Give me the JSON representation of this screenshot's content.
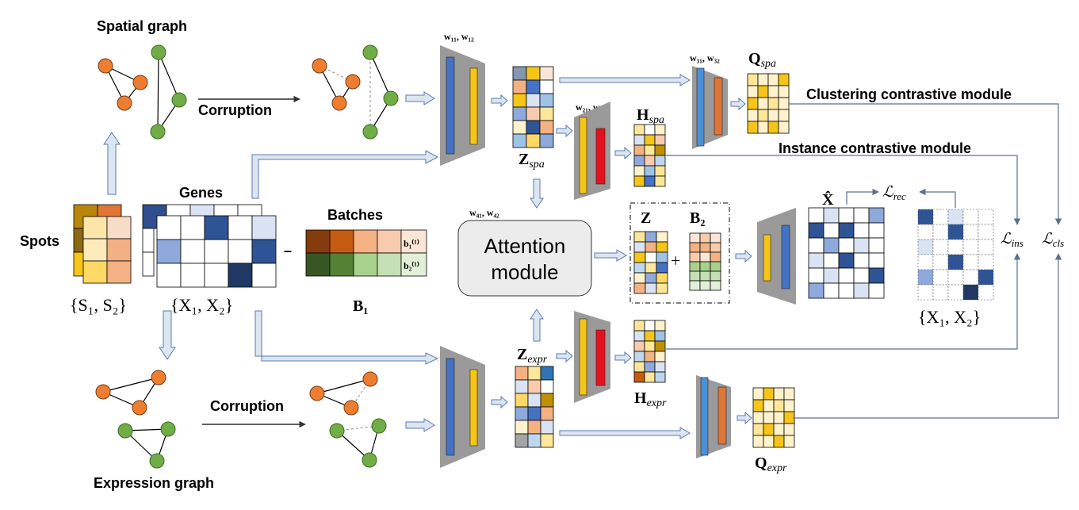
{
  "labels": {
    "spatial_graph": "Spatial graph",
    "expression_graph": "Expression graph",
    "corruption_top": "Corruption",
    "corruption_bottom": "Corruption",
    "spots": "Spots",
    "genes": "Genes",
    "batches": "Batches",
    "clustering_module": "Clustering contrastive module",
    "instance_module": "Instance contrastive module",
    "attention_line1": "Attention",
    "attention_line2": "module",
    "plus": "+",
    "minus": "–"
  },
  "math": {
    "s_set": "{S₁, S₂}",
    "x_set": "{X₁, X₂}",
    "x_set_right": "{X₁, X₂}",
    "b1": "B₁",
    "b1_row": "b₁⁽¹⁾",
    "b2_row": "b₂⁽¹⁾",
    "w_enc": "w₁₁, w₁₂",
    "w_h_spa": "w₂₁, w₂₂",
    "w_q_spa": "w₃₁, w₃₂",
    "w_att": "w₄₁, w₄₂",
    "z_spa_main": "Z",
    "z_spa_sub": "spa",
    "z_expr_main": "Z",
    "z_expr_sub": "expr",
    "h_spa_main": "H",
    "h_spa_sub": "spa",
    "h_expr_main": "H",
    "h_expr_sub": "expr",
    "q_spa_main": "Q",
    "q_spa_sub": "spa",
    "q_expr_main": "Q",
    "q_expr_sub": "expr",
    "z": "Z",
    "b2": "B₂",
    "x_hat": "X̂",
    "l_rec_main": "ℒ",
    "l_rec_sub": "rec",
    "l_ins_main": "ℒ",
    "l_ins_sub": "ins",
    "l_cls_main": "ℒ",
    "l_cls_sub": "cls"
  },
  "colors": {
    "encoder_gray": "#9a9a9a",
    "blue_bar": "#4472C4",
    "yellow_bar": "#F5C518",
    "red_bar": "#E8111B",
    "orange_bar": "#E07535",
    "orange_node": "#ED7D31",
    "green_node": "#70AD47",
    "dark_blue": "#2F4F8F",
    "light_blue": "#9DB4E0",
    "brown": "#8B3A0F",
    "dark_green": "#3B5E2B"
  }
}
